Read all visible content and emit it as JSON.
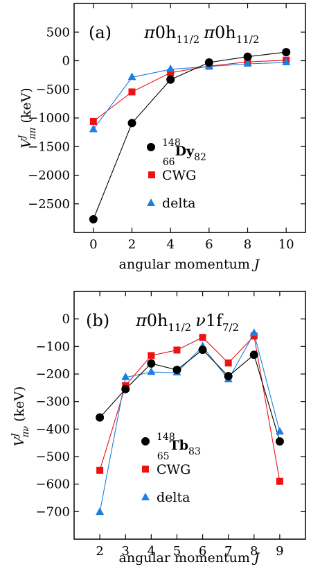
{
  "chart_data": [
    {
      "type": "line",
      "panel_label": "(a)",
      "title_parts": {
        "pi": "π",
        "orbit": "0h",
        "sub": "11/2"
      },
      "xlabel": {
        "text": "angular momentum ",
        "var": "J"
      },
      "ylabel": {
        "main": "V",
        "sup": "J",
        "sub": "ππ",
        "unit": " (keV)"
      },
      "xlim": [
        -1,
        11
      ],
      "ylim": [
        -3000,
        1000
      ],
      "xticks": [
        0,
        2,
        4,
        6,
        8,
        10
      ],
      "yticks": [
        500,
        0,
        -500,
        -1000,
        -1500,
        -2000,
        -2500
      ],
      "ytick_labels": [
        "500",
        "0",
        "−500",
        "−1000",
        "−1500",
        "−2000",
        "−2500"
      ],
      "x": [
        0,
        2,
        4,
        6,
        8,
        10
      ],
      "series": [
        {
          "name": "148 66 Dy 82",
          "label_parts": {
            "A": "148",
            "Z": "66",
            "sym": "Dy",
            "N": "82"
          },
          "color": "#000000",
          "marker": "circle",
          "values": [
            -2770,
            -1090,
            -330,
            -30,
            70,
            150
          ]
        },
        {
          "name": "CWG",
          "color": "#ee1111",
          "marker": "square",
          "values": [
            -1060,
            -545,
            -210,
            -95,
            -20,
            10
          ]
        },
        {
          "name": "delta",
          "color": "#1a7fe0",
          "marker": "triangle",
          "values": [
            -1200,
            -290,
            -150,
            -100,
            -55,
            -30
          ]
        }
      ]
    },
    {
      "type": "line",
      "panel_label": "(b)",
      "title_parts": {
        "pi": "π",
        "orbit1": "0h",
        "sub1": "11/2",
        "nu": "ν",
        "orbit2": "1f",
        "sub2": "7/2"
      },
      "xlabel": {
        "text": "angular momentum ",
        "var": "J"
      },
      "ylabel": {
        "main": "V",
        "sup": "J",
        "sub": "πν",
        "unit": " (keV)"
      },
      "xlim": [
        1,
        10
      ],
      "ylim": [
        -800,
        100
      ],
      "xticks": [
        2,
        3,
        4,
        5,
        6,
        7,
        8,
        9
      ],
      "yticks": [
        0,
        -100,
        -200,
        -300,
        -400,
        -500,
        -600,
        -700
      ],
      "ytick_labels": [
        "0",
        "−100",
        "−200",
        "−300",
        "−400",
        "−500",
        "−600",
        "−700"
      ],
      "x": [
        2,
        3,
        4,
        5,
        6,
        7,
        8,
        9
      ],
      "series": [
        {
          "name": "148 65 Tb 83",
          "label_parts": {
            "A": "148",
            "Z": "65",
            "sym": "Tb",
            "N": "83"
          },
          "color": "#000000",
          "marker": "circle",
          "values": [
            -358,
            -255,
            -162,
            -185,
            -112,
            -208,
            -130,
            -445
          ]
        },
        {
          "name": "CWG",
          "color": "#ee1111",
          "marker": "square",
          "values": [
            -550,
            -242,
            -133,
            -113,
            -67,
            -160,
            -62,
            -590
          ]
        },
        {
          "name": "delta",
          "color": "#1a7fe0",
          "marker": "triangle",
          "values": [
            -702,
            -212,
            -193,
            -195,
            -100,
            -220,
            -52,
            -410
          ]
        }
      ]
    }
  ]
}
